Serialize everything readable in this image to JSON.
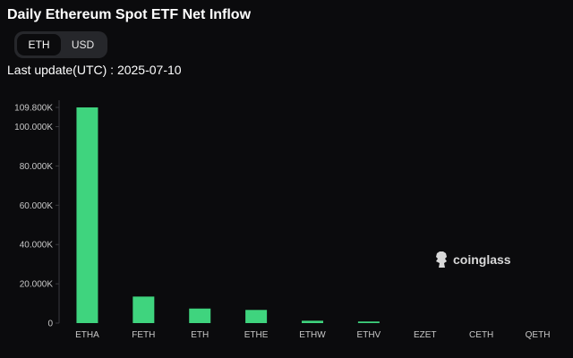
{
  "title": "Daily Ethereum Spot ETF Net Inflow",
  "toggle": {
    "options": [
      "ETH",
      "USD"
    ],
    "selected": "ETH"
  },
  "last_update": "Last update(UTC) : 2025-07-10",
  "watermark": "coinglass",
  "colors": {
    "bar": "#3fd47e",
    "background": "#0b0b0d"
  },
  "chart_data": {
    "type": "bar",
    "categories": [
      "ETHA",
      "FETH",
      "ETH",
      "ETHE",
      "ETHW",
      "ETHV",
      "EZET",
      "CETH",
      "QETH"
    ],
    "values": [
      109800,
      13500,
      7400,
      6700,
      1200,
      800,
      0,
      0,
      0
    ],
    "ylim": [
      0,
      109800
    ],
    "yticks": [
      0,
      20000,
      40000,
      60000,
      80000,
      100000,
      109800
    ],
    "ytick_labels": [
      "0",
      "20.000K",
      "40.000K",
      "60.000K",
      "80.000K",
      "100.000K",
      "109.800K"
    ],
    "grid": false,
    "title": "",
    "xlabel": "",
    "ylabel": ""
  }
}
